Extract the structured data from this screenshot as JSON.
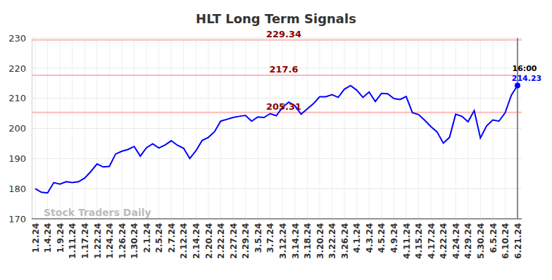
{
  "chart_data": {
    "type": "line",
    "title": "HLT Long Term Signals",
    "categories": [
      "1.2.24",
      null,
      "1.4.24",
      null,
      "1.9.24",
      null,
      "1.11.24",
      null,
      "1.17.24",
      null,
      "1.22.24",
      null,
      "1.24.24",
      null,
      "1.26.24",
      null,
      "1.30.24",
      null,
      "2.1.24",
      null,
      "2.5.24",
      null,
      "2.7.24",
      null,
      "2.12.24",
      null,
      "2.14.24",
      null,
      "2.20.24",
      null,
      "2.22.24",
      null,
      "2.27.24",
      null,
      "2.29.24",
      null,
      "3.5.24",
      null,
      "3.7.24",
      null,
      "3.12.24",
      null,
      "3.14.24",
      null,
      "3.18.24",
      null,
      "3.20.24",
      null,
      "3.22.24",
      null,
      "3.26.24",
      null,
      "4.1.24",
      null,
      "4.3.24",
      null,
      "4.5.24",
      null,
      "4.9.24",
      null,
      "4.11.24",
      null,
      "4.15.24",
      null,
      "4.17.24",
      null,
      "4.22.24",
      null,
      "4.24.24",
      null,
      "4.29.24",
      null,
      "5.30.24",
      null,
      "6.5.24",
      null,
      "6.10.24",
      null,
      "6.21.24"
    ],
    "values": [
      180,
      178.8,
      178.6,
      182,
      181.5,
      182.3,
      182,
      182.3,
      183.5,
      185.7,
      188.2,
      187.2,
      187.4,
      191.5,
      192.4,
      193,
      194,
      190.8,
      193.6,
      194.9,
      193.5,
      194.5,
      195.9,
      194.4,
      193.4,
      190,
      192.6,
      196,
      197,
      198.9,
      202.4,
      203,
      203.6,
      204,
      204.3,
      202.4,
      203.8,
      203.6,
      204.9,
      204.2,
      207,
      208.7,
      207.5,
      204.7,
      206.5,
      208.2,
      210.5,
      210.5,
      211.2,
      210.3,
      213,
      214.2,
      212.7,
      210.3,
      212.1,
      208.9,
      211.6,
      211.5,
      209.9,
      209.6,
      210.6,
      205.2,
      204.6,
      202.7,
      200.6,
      198.8,
      195.1,
      197,
      204.7,
      204,
      202.2,
      205.9,
      196.8,
      200.8,
      202.8,
      202.4,
      205.2,
      211,
      214.23
    ],
    "color": "#0000ff",
    "ylim": [
      170,
      230
    ],
    "yticks": [
      170,
      180,
      190,
      200,
      210,
      220,
      230
    ],
    "grid": true,
    "reference_lines": [
      {
        "value": 229.34,
        "label": "229.34"
      },
      {
        "value": 217.6,
        "label": "217.6"
      },
      {
        "value": 205.31,
        "label": "205.31"
      }
    ],
    "last_point": {
      "time": "16:00",
      "label": "214.23"
    },
    "watermark": "Stock Traders Daily"
  }
}
